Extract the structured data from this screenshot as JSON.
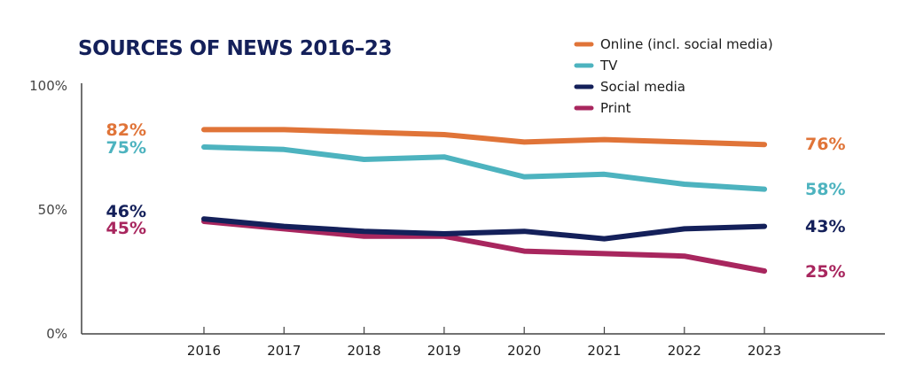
{
  "chart_data": {
    "type": "line",
    "title": "SOURCES OF NEWS 2016–23",
    "xlabel": "",
    "ylabel": "",
    "x": [
      "2016",
      "2017",
      "2018",
      "2019",
      "2020",
      "2021",
      "2022",
      "2023"
    ],
    "ylim": [
      0,
      100
    ],
    "yticks": [
      {
        "value": 100,
        "label": "100%"
      },
      {
        "value": 50,
        "label": "50%"
      },
      {
        "value": 0,
        "label": "0%"
      }
    ],
    "grid": false,
    "legend_position": "top-right",
    "series": [
      {
        "name": "Online (incl. social media)",
        "color": "#e07438",
        "values": [
          82,
          82,
          81,
          80,
          77,
          78,
          77,
          76
        ],
        "start_label": "82%",
        "end_label": "76%"
      },
      {
        "name": "TV",
        "color": "#4db3bf",
        "values": [
          75,
          74,
          70,
          71,
          63,
          64,
          60,
          58
        ],
        "start_label": "75%",
        "end_label": "58%"
      },
      {
        "name": "Social media",
        "color": "#14205a",
        "values": [
          46,
          43,
          41,
          40,
          41,
          38,
          42,
          43
        ],
        "start_label": "46%",
        "end_label": "43%"
      },
      {
        "name": "Print",
        "color": "#a8265e",
        "values": [
          45,
          42,
          39,
          39,
          33,
          32,
          31,
          25
        ],
        "start_label": "45%",
        "end_label": "25%"
      }
    ]
  }
}
